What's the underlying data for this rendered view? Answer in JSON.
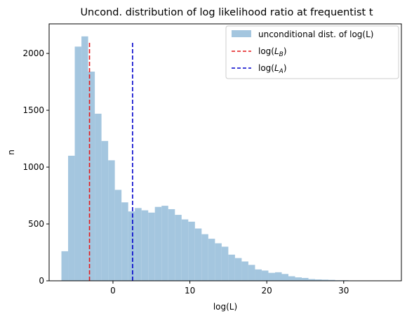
{
  "chart_data": {
    "type": "bar",
    "title": "Uncond. distribution of log likelihood ratio at frequentist  t",
    "xlabel": "log(L)",
    "ylabel": "n",
    "xlim": [
      -8.3,
      37.5
    ],
    "ylim": [
      0,
      2260
    ],
    "xticks": [
      0,
      10,
      20,
      30
    ],
    "yticks": [
      0,
      500,
      1000,
      1500,
      2000
    ],
    "bin_edges_start": -6.7,
    "bin_width": 0.868,
    "values": [
      260,
      1100,
      2060,
      2150,
      1840,
      1470,
      1230,
      1060,
      800,
      690,
      610,
      640,
      620,
      600,
      650,
      660,
      630,
      580,
      540,
      520,
      460,
      410,
      370,
      330,
      300,
      230,
      200,
      170,
      140,
      100,
      90,
      70,
      75,
      60,
      40,
      30,
      25,
      15,
      12,
      10,
      8,
      5,
      5,
      3,
      2,
      2,
      1,
      1,
      0,
      1
    ],
    "bar_color": "#a4c6df",
    "vlines": [
      {
        "x": -3.05,
        "ymin": 0,
        "ymax": 2100,
        "color": "#e41a1c",
        "style": "dashed"
      },
      {
        "x": 2.55,
        "ymin": 0,
        "ymax": 2100,
        "color": "#0000cc",
        "style": "dashed"
      }
    ],
    "legend": {
      "placement": "top-right",
      "entries": [
        {
          "kind": "patch",
          "label": "unconditional dist. of log(L)",
          "color": "#a4c6df"
        },
        {
          "kind": "dash",
          "label": "log(L_B)",
          "label_main": "log(",
          "label_var": "L",
          "label_sub": "B",
          "label_end": ")",
          "color": "#e41a1c"
        },
        {
          "kind": "dash",
          "label": "log(L_A)",
          "label_main": "log(",
          "label_var": "L",
          "label_sub": "A",
          "label_end": ")",
          "color": "#0000cc"
        }
      ]
    }
  }
}
